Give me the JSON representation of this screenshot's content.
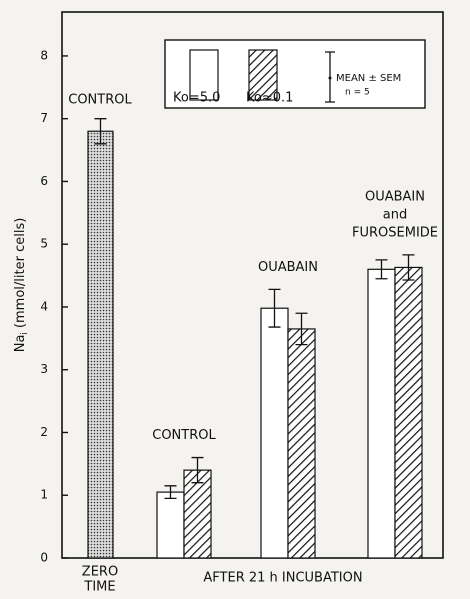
{
  "chart_data": {
    "type": "bar",
    "y_label": {
      "main": "Na",
      "sub": "i",
      "unit": "(mmol/liter cells)"
    },
    "ylim": [
      0,
      8.7
    ],
    "yticks": [
      0,
      1,
      2,
      3,
      4,
      5,
      6,
      7,
      8
    ],
    "zero_time": {
      "label": "CONTROL",
      "value": 6.8,
      "error": 0.2,
      "x_label": [
        "ZERO",
        "TIME"
      ]
    },
    "x_label": "AFTER 21 h INCUBATION",
    "categories": [
      [
        "CONTROL"
      ],
      [
        "OUABAIN"
      ],
      [
        "OUABAIN",
        "and",
        "FUROSEMIDE"
      ]
    ],
    "series": [
      {
        "name": "Ko=5.0",
        "color": "#ffffff",
        "values": [
          1.05,
          3.98,
          4.6
        ],
        "errors": [
          0.1,
          0.3,
          0.15
        ]
      },
      {
        "name": "Ko≈0.1",
        "color": "#111111",
        "values": [
          1.4,
          3.65,
          4.63
        ],
        "errors": [
          0.2,
          0.25,
          0.2
        ]
      }
    ],
    "legend_note": [
      "MEAN ± SEM",
      "n = 5"
    ]
  }
}
